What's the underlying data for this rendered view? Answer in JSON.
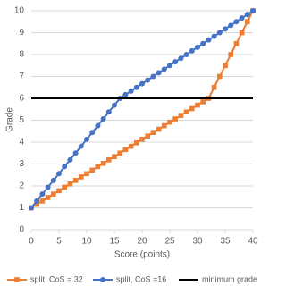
{
  "chart_data": {
    "type": "line",
    "xlabel": "Score (points)",
    "ylabel": "Grade",
    "x": [
      0,
      1,
      2,
      3,
      4,
      5,
      6,
      7,
      8,
      9,
      10,
      11,
      12,
      13,
      14,
      15,
      16,
      17,
      18,
      19,
      20,
      21,
      22,
      23,
      24,
      25,
      26,
      27,
      28,
      29,
      30,
      31,
      32,
      33,
      34,
      35,
      36,
      37,
      38,
      39,
      40
    ],
    "series": [
      {
        "name": "split, CoS = 32",
        "color": "#ed7d31",
        "marker": "square",
        "values": [
          1,
          1.16,
          1.31,
          1.47,
          1.63,
          1.78,
          1.94,
          2.09,
          2.25,
          2.41,
          2.56,
          2.72,
          2.88,
          3.03,
          3.19,
          3.34,
          3.5,
          3.66,
          3.81,
          3.97,
          4.13,
          4.28,
          4.44,
          4.59,
          4.75,
          4.91,
          5.06,
          5.22,
          5.38,
          5.53,
          5.69,
          5.84,
          6,
          6.5,
          7,
          7.5,
          8,
          8.5,
          9,
          9.5,
          10
        ]
      },
      {
        "name": "split, CoS =16",
        "color": "#4472c4",
        "marker": "circle",
        "values": [
          1,
          1.31,
          1.63,
          1.94,
          2.25,
          2.56,
          2.88,
          3.19,
          3.5,
          3.81,
          4.13,
          4.44,
          4.75,
          5.06,
          5.38,
          5.69,
          6,
          6.17,
          6.33,
          6.5,
          6.67,
          6.83,
          7,
          7.17,
          7.33,
          7.5,
          7.67,
          7.83,
          8,
          8.17,
          8.33,
          8.5,
          8.67,
          8.83,
          9,
          9.17,
          9.33,
          9.5,
          9.67,
          9.83,
          10
        ]
      },
      {
        "name": "minimum grade",
        "color": "#000000",
        "marker": null,
        "values": [
          6,
          6,
          6,
          6,
          6,
          6,
          6,
          6,
          6,
          6,
          6,
          6,
          6,
          6,
          6,
          6,
          6,
          6,
          6,
          6,
          6,
          6,
          6,
          6,
          6,
          6,
          6,
          6,
          6,
          6,
          6,
          6,
          6,
          6,
          6,
          6,
          6,
          6,
          6,
          6,
          6
        ]
      }
    ],
    "xlim": [
      0,
      40
    ],
    "xticks": [
      0,
      5,
      10,
      15,
      20,
      25,
      30,
      35,
      40
    ],
    "ylim": [
      0,
      10
    ],
    "yticks": [
      0,
      1,
      2,
      3,
      4,
      5,
      6,
      7,
      8,
      9,
      10
    ],
    "grid": true,
    "legend": "bottom"
  }
}
